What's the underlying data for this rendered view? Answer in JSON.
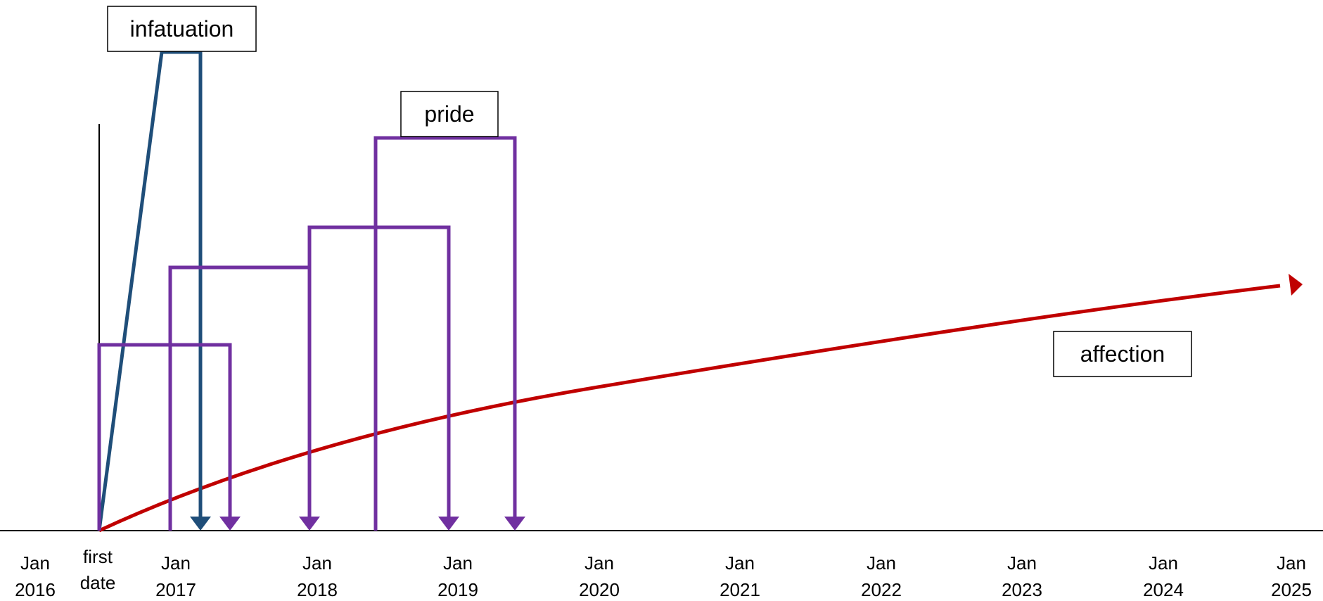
{
  "timeline": {
    "ticks": [
      {
        "line1": "Jan",
        "line2": "2016"
      },
      {
        "line1": "first",
        "line2": "date"
      },
      {
        "line1": "Jan",
        "line2": "2017"
      },
      {
        "line1": "Jan",
        "line2": "2018"
      },
      {
        "line1": "Jan",
        "line2": "2019"
      },
      {
        "line1": "Jan",
        "line2": "2020"
      },
      {
        "line1": "Jan",
        "line2": "2021"
      },
      {
        "line1": "Jan",
        "line2": "2022"
      },
      {
        "line1": "Jan",
        "line2": "2023"
      },
      {
        "line1": "Jan",
        "line2": "2024"
      },
      {
        "line1": "Jan",
        "line2": "2025"
      }
    ]
  },
  "labels": {
    "infatuation": "infatuation",
    "pride": "pride",
    "affection": "affection"
  },
  "colors": {
    "infatuation": "#1f4e79",
    "pride": "#7030a0",
    "affection": "#c00000",
    "axis": "#000000"
  }
}
